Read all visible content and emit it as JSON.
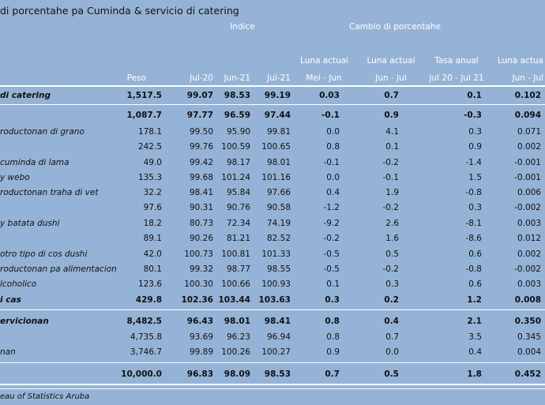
{
  "title": "di porcentahe pa Cuminda & servicio di catering",
  "header": {
    "indice": "Indice",
    "cambio": "Cambio di porcentahe",
    "peso": "Peso",
    "jul20": "Jul-20",
    "jun21": "Jun-21",
    "jul21": "Jul-21",
    "col_mj_top": "Luna actual",
    "col_mj_bottom": "Mei - Jun",
    "col_jj_top": "Luna actual",
    "col_jj_bottom": "Jun - Jul",
    "col_ta_top": "Tasa anual",
    "col_ta_bottom": "Jul 20 - Jul 21",
    "col_lj_top": "Luna actua",
    "col_lj_bottom": "Jun - Jul"
  },
  "rows": [
    {
      "cat": "di catering",
      "peso": "1,517.5",
      "j20": "99.07",
      "j21a": "98.53",
      "j21b": "99.19",
      "mj": "0.03",
      "jj": "0.7",
      "ta": "0.1",
      "lj": "0.102"
    },
    {
      "cat": "",
      "peso": "1,087.7",
      "j20": "97.77",
      "j21a": "96.59",
      "j21b": "97.44",
      "mj": "-0.1",
      "jj": "0.9",
      "ta": "-0.3",
      "lj": "0.094"
    },
    {
      "cat": "roductonan di grano",
      "peso": "178.1",
      "j20": "99.50",
      "j21a": "95.90",
      "j21b": "99.81",
      "mj": "0.0",
      "jj": "4.1",
      "ta": "0.3",
      "lj": "0.071"
    },
    {
      "cat": "",
      "peso": "242.5",
      "j20": "99.76",
      "j21a": "100.59",
      "j21b": "100.65",
      "mj": "0.8",
      "jj": "0.1",
      "ta": "0.9",
      "lj": "0.002"
    },
    {
      "cat": "cuminda di lama",
      "peso": "49.0",
      "j20": "99.42",
      "j21a": "98.17",
      "j21b": "98.01",
      "mj": "-0.1",
      "jj": "-0.2",
      "ta": "-1.4",
      "lj": "-0.001"
    },
    {
      "cat": "y webo",
      "peso": "135.3",
      "j20": "99.68",
      "j21a": "101.24",
      "j21b": "101.16",
      "mj": "0.0",
      "jj": "-0.1",
      "ta": "1.5",
      "lj": "-0.001"
    },
    {
      "cat": "roductonan traha di vet",
      "peso": "32.2",
      "j20": "98.41",
      "j21a": "95.84",
      "j21b": "97.66",
      "mj": "0.4",
      "jj": "1.9",
      "ta": "-0.8",
      "lj": "0.006"
    },
    {
      "cat": "",
      "peso": "97.6",
      "j20": "90.31",
      "j21a": "90.76",
      "j21b": "90.58",
      "mj": "-1.2",
      "jj": "-0.2",
      "ta": "0.3",
      "lj": "-0.002"
    },
    {
      "cat": "y batata dushi",
      "peso": "18.2",
      "j20": "80.73",
      "j21a": "72.34",
      "j21b": "74.19",
      "mj": "-9.2",
      "jj": "2.6",
      "ta": "-8.1",
      "lj": "0.003"
    },
    {
      "cat": "",
      "peso": "89.1",
      "j20": "90.26",
      "j21a": "81.21",
      "j21b": "82.52",
      "mj": "-0.2",
      "jj": "1.6",
      "ta": "-8.6",
      "lj": "0.012"
    },
    {
      "cat": "otro tipo di cos dushi",
      "peso": "42.0",
      "j20": "100.73",
      "j21a": "100.81",
      "j21b": "101.33",
      "mj": "-0.5",
      "jj": "0.5",
      "ta": "0.6",
      "lj": "0.002"
    },
    {
      "cat": "roductonan pa alimentacion",
      "peso": "80.1",
      "j20": "99.32",
      "j21a": "98.77",
      "j21b": "98.55",
      "mj": "-0.5",
      "jj": "-0.2",
      "ta": "-0.8",
      "lj": "-0.002"
    },
    {
      "cat": "lcoholico",
      "peso": "123.6",
      "j20": "100.30",
      "j21a": "100.66",
      "j21b": "100.93",
      "mj": "0.1",
      "jj": "0.3",
      "ta": "0.6",
      "lj": "0.003"
    },
    {
      "cat": "i cas",
      "peso": "429.8",
      "j20": "102.36",
      "j21a": "103.44",
      "j21b": "103.63",
      "mj": "0.3",
      "jj": "0.2",
      "ta": "1.2",
      "lj": "0.008"
    },
    {
      "cat": "ervicionan",
      "peso": "8,482.5",
      "j20": "96.43",
      "j21a": "98.01",
      "j21b": "98.41",
      "mj": "0.8",
      "jj": "0.4",
      "ta": "2.1",
      "lj": "0.350"
    },
    {
      "cat": "",
      "peso": "4,735.8",
      "j20": "93.69",
      "j21a": "96.23",
      "j21b": "96.94",
      "mj": "0.8",
      "jj": "0.7",
      "ta": "3.5",
      "lj": "0.345"
    },
    {
      "cat": "nan",
      "peso": "3,746.7",
      "j20": "99.89",
      "j21a": "100.26",
      "j21b": "100.27",
      "mj": "0.9",
      "jj": "0.0",
      "ta": "0.4",
      "lj": "0.004"
    },
    {
      "cat": "",
      "peso": "10,000.0",
      "j20": "96.83",
      "j21a": "98.09",
      "j21b": "98.53",
      "mj": "0.7",
      "jj": "0.5",
      "ta": "1.8",
      "lj": "0.452"
    }
  ],
  "source": "eau of Statistics Aruba"
}
